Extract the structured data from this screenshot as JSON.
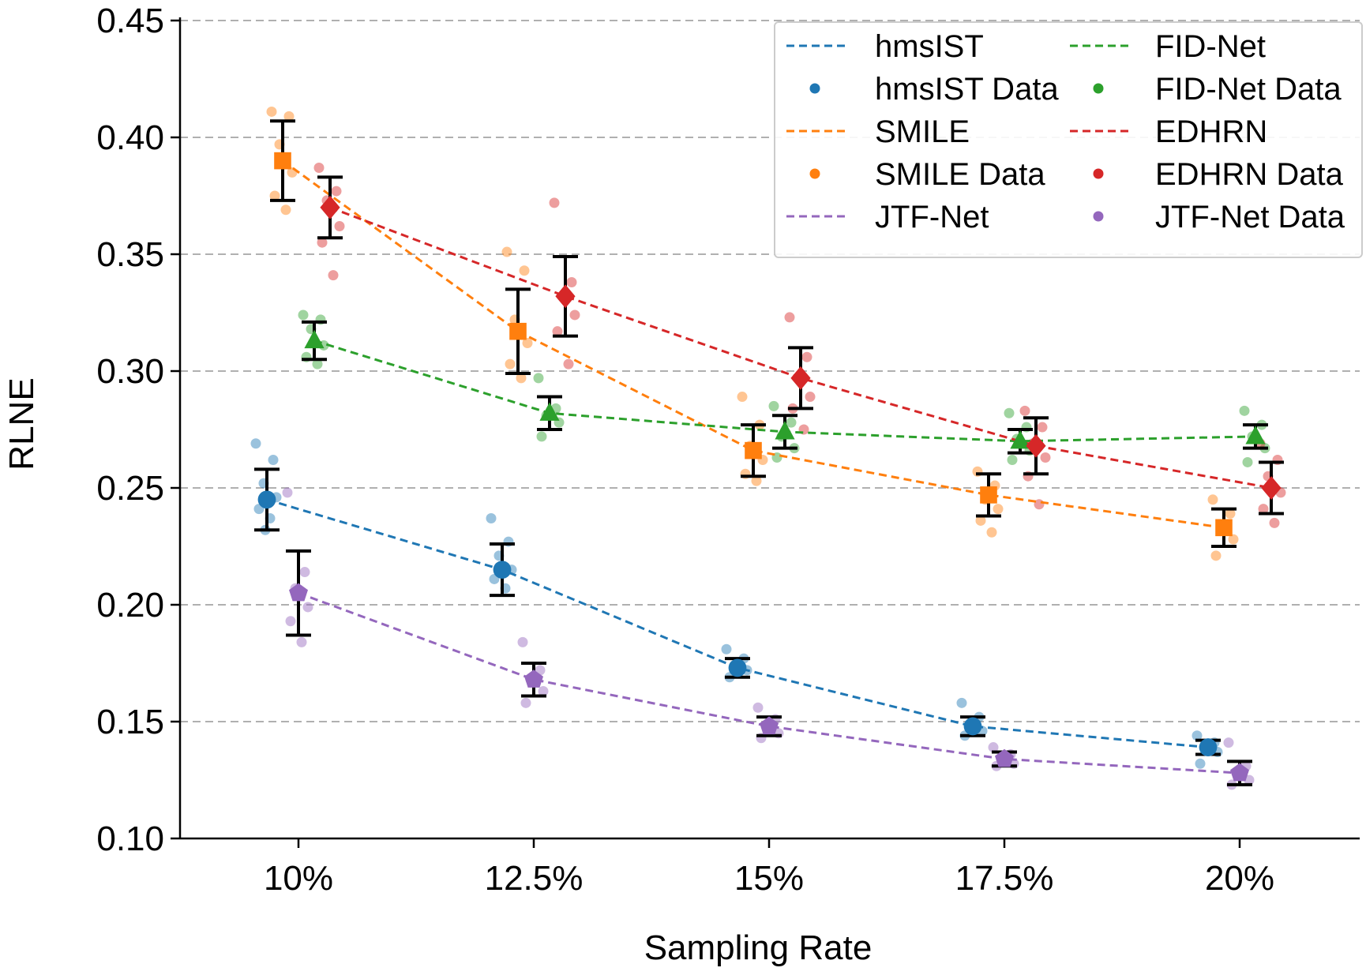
{
  "chart_data": {
    "type": "line",
    "xlabel": "Sampling Rate",
    "ylabel": "RLNE",
    "categories": [
      "10%",
      "12.5%",
      "15%",
      "17.5%",
      "20%"
    ],
    "ylim": [
      0.1,
      0.45
    ],
    "yticks": [
      "0.10",
      "0.15",
      "0.20",
      "0.25",
      "0.30",
      "0.35",
      "0.40",
      "0.45"
    ],
    "grid": "horizontal dashed",
    "legend_position": "top-right",
    "series": [
      {
        "name": "hmsIST",
        "data_label": "hmsIST Data",
        "color": "#1f77b4",
        "marker": "circle",
        "values": [
          0.245,
          0.215,
          0.173,
          0.148,
          0.139
        ],
        "errors": [
          0.013,
          0.011,
          0.004,
          0.004,
          0.003
        ],
        "points": [
          [
            0.269,
            0.262,
            0.252,
            0.246,
            0.241,
            0.237,
            0.232
          ],
          [
            0.237,
            0.227,
            0.221,
            0.215,
            0.211,
            0.207
          ],
          [
            0.181,
            0.177,
            0.174,
            0.172,
            0.169
          ],
          [
            0.158,
            0.152,
            0.148,
            0.146,
            0.144
          ],
          [
            0.144,
            0.141,
            0.139,
            0.137,
            0.132
          ]
        ]
      },
      {
        "name": "SMILE",
        "data_label": "SMILE Data",
        "color": "#ff7f0e",
        "marker": "square",
        "values": [
          0.39,
          0.317,
          0.266,
          0.247,
          0.233
        ],
        "errors": [
          0.017,
          0.018,
          0.011,
          0.009,
          0.008
        ],
        "points": [
          [
            0.411,
            0.409,
            0.397,
            0.385,
            0.375,
            0.369
          ],
          [
            0.351,
            0.343,
            0.322,
            0.312,
            0.303,
            0.297
          ],
          [
            0.289,
            0.277,
            0.268,
            0.262,
            0.256,
            0.253
          ],
          [
            0.257,
            0.251,
            0.245,
            0.241,
            0.236,
            0.231
          ],
          [
            0.245,
            0.239,
            0.233,
            0.228,
            0.221
          ]
        ]
      },
      {
        "name": "JTF-Net",
        "data_label": "JTF-Net Data",
        "color": "#9467bd",
        "marker": "pentagon",
        "values": [
          0.205,
          0.168,
          0.148,
          0.134,
          0.128
        ],
        "errors": [
          0.018,
          0.007,
          0.004,
          0.003,
          0.005
        ],
        "points": [
          [
            0.248,
            0.214,
            0.207,
            0.199,
            0.193,
            0.184
          ],
          [
            0.184,
            0.172,
            0.168,
            0.163,
            0.158
          ],
          [
            0.156,
            0.151,
            0.148,
            0.145,
            0.143
          ],
          [
            0.139,
            0.136,
            0.134,
            0.132,
            0.131
          ],
          [
            0.141,
            0.131,
            0.128,
            0.125,
            0.123
          ]
        ]
      },
      {
        "name": "FID-Net",
        "data_label": "FID-Net Data",
        "color": "#2ca02c",
        "marker": "triangle",
        "values": [
          0.313,
          0.282,
          0.274,
          0.27,
          0.272
        ],
        "errors": [
          0.008,
          0.007,
          0.007,
          0.005,
          0.005
        ],
        "points": [
          [
            0.324,
            0.322,
            0.318,
            0.311,
            0.306,
            0.303
          ],
          [
            0.297,
            0.284,
            0.281,
            0.278,
            0.272
          ],
          [
            0.285,
            0.278,
            0.272,
            0.267,
            0.263
          ],
          [
            0.282,
            0.276,
            0.271,
            0.266,
            0.262
          ],
          [
            0.283,
            0.277,
            0.272,
            0.267,
            0.261
          ]
        ]
      },
      {
        "name": "EDHRN",
        "data_label": "EDHRN Data",
        "color": "#d62728",
        "marker": "diamond",
        "values": [
          0.37,
          0.332,
          0.297,
          0.268,
          0.25
        ],
        "errors": [
          0.013,
          0.017,
          0.013,
          0.012,
          0.011
        ],
        "points": [
          [
            0.387,
            0.377,
            0.373,
            0.362,
            0.355,
            0.341
          ],
          [
            0.372,
            0.338,
            0.332,
            0.324,
            0.317,
            0.303
          ],
          [
            0.323,
            0.306,
            0.297,
            0.289,
            0.284,
            0.275
          ],
          [
            0.283,
            0.276,
            0.269,
            0.263,
            0.255,
            0.243
          ],
          [
            0.269,
            0.262,
            0.255,
            0.248,
            0.241,
            0.235
          ]
        ]
      }
    ],
    "legend": [
      [
        "hmsIST",
        "FID-Net"
      ],
      [
        "hmsIST Data",
        "FID-Net Data"
      ],
      [
        "SMILE",
        "EDHRN"
      ],
      [
        "SMILE Data",
        "EDHRN Data"
      ],
      [
        "JTF-Net",
        "JTF-Net Data"
      ]
    ]
  }
}
